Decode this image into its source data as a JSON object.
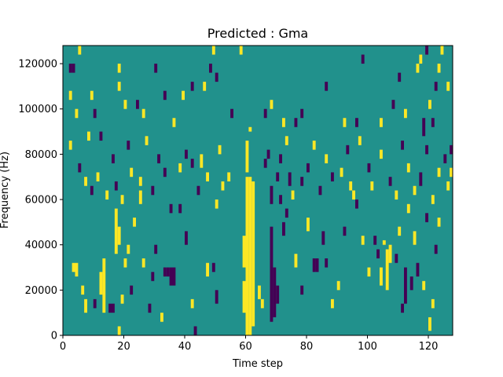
{
  "chart_data": {
    "type": "heatmap",
    "title": "Predicted : Gma",
    "xlabel": "Time step",
    "ylabel": "Frequency (Hz)",
    "xlim": [
      0,
      128
    ],
    "ylim": [
      0,
      128000
    ],
    "x_ticks": [
      0,
      20,
      40,
      60,
      80,
      100,
      120
    ],
    "y_ticks": [
      0,
      20000,
      40000,
      60000,
      80000,
      100000,
      120000
    ],
    "grid": false,
    "colormap": "viridis",
    "levels": {
      "low": "#440154",
      "background": "#21918c",
      "high": "#fde725"
    },
    "background_level": "background",
    "cells": [
      {
        "t": 60,
        "f0": 0,
        "f1": 70000,
        "level": "high"
      },
      {
        "t": 61,
        "f0": 0,
        "f1": 70000,
        "level": "high"
      },
      {
        "t": 62,
        "f0": 4000,
        "f1": 68000,
        "level": "high"
      },
      {
        "t": 59,
        "f0": 10000,
        "f1": 24000,
        "level": "high"
      },
      {
        "t": 59,
        "f0": 30000,
        "f1": 44000,
        "level": "high"
      },
      {
        "t": 60,
        "f0": 72000,
        "f1": 86000,
        "level": "high"
      },
      {
        "t": 61,
        "f0": 90000,
        "f1": 92000,
        "level": "high"
      },
      {
        "t": 68,
        "f0": 6000,
        "f1": 48000,
        "level": "low"
      },
      {
        "t": 69,
        "f0": 8000,
        "f1": 30000,
        "level": "low"
      },
      {
        "t": 70,
        "f0": 14000,
        "f1": 22000,
        "level": "low"
      },
      {
        "t": 68,
        "f0": 58000,
        "f1": 66000,
        "level": "low"
      },
      {
        "t": 71,
        "f0": 58000,
        "f1": 62000,
        "level": "low"
      },
      {
        "t": 82,
        "f0": 28000,
        "f1": 34000,
        "level": "low"
      },
      {
        "t": 83,
        "f0": 28000,
        "f1": 34000,
        "level": "low"
      },
      {
        "t": 106,
        "f0": 20000,
        "f1": 38000,
        "level": "high"
      },
      {
        "t": 104,
        "f0": 22000,
        "f1": 30000,
        "level": "high"
      },
      {
        "t": 105,
        "f0": 40000,
        "f1": 42000,
        "level": "high"
      },
      {
        "t": 107,
        "f0": 32000,
        "f1": 40000,
        "level": "high"
      },
      {
        "t": 112,
        "f0": 14000,
        "f1": 30000,
        "level": "low"
      },
      {
        "t": 114,
        "f0": 20000,
        "f1": 26000,
        "level": "low"
      },
      {
        "t": 13,
        "f0": 10000,
        "f1": 34000,
        "level": "high"
      },
      {
        "t": 12,
        "f0": 18000,
        "f1": 28000,
        "level": "high"
      },
      {
        "t": 17,
        "f0": 36000,
        "f1": 56000,
        "level": "high"
      },
      {
        "t": 18,
        "f0": 40000,
        "f1": 48000,
        "level": "high"
      },
      {
        "t": 4,
        "f0": 26000,
        "f1": 32000,
        "level": "high"
      },
      {
        "t": 3,
        "f0": 28000,
        "f1": 32000,
        "level": "high"
      },
      {
        "t": 6,
        "f0": 18000,
        "f1": 22000,
        "level": "high"
      },
      {
        "t": 7,
        "f0": 10000,
        "f1": 16000,
        "level": "high"
      },
      {
        "t": 10,
        "f0": 12000,
        "f1": 16000,
        "level": "low"
      },
      {
        "t": 15,
        "f0": 10000,
        "f1": 14000,
        "level": "low"
      },
      {
        "t": 16,
        "f0": 10000,
        "f1": 14000,
        "level": "low"
      },
      {
        "t": 18,
        "f0": 0,
        "f1": 4000,
        "level": "high"
      },
      {
        "t": 19,
        "f0": 14000,
        "f1": 18000,
        "level": "high"
      },
      {
        "t": 20,
        "f0": 30000,
        "f1": 34000,
        "level": "high"
      },
      {
        "t": 21,
        "f0": 36000,
        "f1": 40000,
        "level": "high"
      },
      {
        "t": 22,
        "f0": 18000,
        "f1": 22000,
        "level": "low"
      },
      {
        "t": 23,
        "f0": 48000,
        "f1": 52000,
        "level": "high"
      },
      {
        "t": 25,
        "f0": 58000,
        "f1": 64000,
        "level": "high"
      },
      {
        "t": 26,
        "f0": 30000,
        "f1": 34000,
        "level": "high"
      },
      {
        "t": 28,
        "f0": 10000,
        "f1": 14000,
        "level": "low"
      },
      {
        "t": 29,
        "f0": 24000,
        "f1": 28000,
        "level": "low"
      },
      {
        "t": 30,
        "f0": 36000,
        "f1": 40000,
        "level": "low"
      },
      {
        "t": 32,
        "f0": 6000,
        "f1": 10000,
        "level": "high"
      },
      {
        "t": 33,
        "f0": 26000,
        "f1": 30000,
        "level": "low"
      },
      {
        "t": 34,
        "f0": 26000,
        "f1": 30000,
        "level": "low"
      },
      {
        "t": 35,
        "f0": 22000,
        "f1": 30000,
        "level": "low"
      },
      {
        "t": 36,
        "f0": 22000,
        "f1": 30000,
        "level": "low"
      },
      {
        "t": 38,
        "f0": 54000,
        "f1": 58000,
        "level": "low"
      },
      {
        "t": 40,
        "f0": 40000,
        "f1": 46000,
        "level": "low"
      },
      {
        "t": 42,
        "f0": 12000,
        "f1": 16000,
        "level": "high"
      },
      {
        "t": 43,
        "f0": 0,
        "f1": 4000,
        "level": "low"
      },
      {
        "t": 45,
        "f0": 74000,
        "f1": 80000,
        "level": "high"
      },
      {
        "t": 47,
        "f0": 26000,
        "f1": 32000,
        "level": "high"
      },
      {
        "t": 49,
        "f0": 28000,
        "f1": 32000,
        "level": "low"
      },
      {
        "t": 50,
        "f0": 14000,
        "f1": 20000,
        "level": "low"
      },
      {
        "t": 51,
        "f0": 80000,
        "f1": 84000,
        "level": "high"
      },
      {
        "t": 52,
        "f0": 64000,
        "f1": 68000,
        "level": "high"
      },
      {
        "t": 64,
        "f0": 16000,
        "f1": 22000,
        "level": "high"
      },
      {
        "t": 65,
        "f0": 12000,
        "f1": 16000,
        "level": "high"
      },
      {
        "t": 72,
        "f0": 44000,
        "f1": 50000,
        "level": "low"
      },
      {
        "t": 73,
        "f0": 52000,
        "f1": 56000,
        "level": "low"
      },
      {
        "t": 74,
        "f0": 66000,
        "f1": 72000,
        "level": "low"
      },
      {
        "t": 76,
        "f0": 30000,
        "f1": 36000,
        "level": "high"
      },
      {
        "t": 78,
        "f0": 18000,
        "f1": 22000,
        "level": "low"
      },
      {
        "t": 80,
        "f0": 46000,
        "f1": 52000,
        "level": "high"
      },
      {
        "t": 85,
        "f0": 40000,
        "f1": 46000,
        "level": "low"
      },
      {
        "t": 86,
        "f0": 30000,
        "f1": 34000,
        "level": "low"
      },
      {
        "t": 88,
        "f0": 12000,
        "f1": 16000,
        "level": "high"
      },
      {
        "t": 90,
        "f0": 20000,
        "f1": 24000,
        "level": "high"
      },
      {
        "t": 92,
        "f0": 44000,
        "f1": 48000,
        "level": "low"
      },
      {
        "t": 94,
        "f0": 64000,
        "f1": 68000,
        "level": "high"
      },
      {
        "t": 96,
        "f0": 56000,
        "f1": 60000,
        "level": "low"
      },
      {
        "t": 98,
        "f0": 40000,
        "f1": 44000,
        "level": "high"
      },
      {
        "t": 100,
        "f0": 26000,
        "f1": 30000,
        "level": "high"
      },
      {
        "t": 102,
        "f0": 40000,
        "f1": 44000,
        "level": "low"
      },
      {
        "t": 103,
        "f0": 34000,
        "f1": 38000,
        "level": "low"
      },
      {
        "t": 109,
        "f0": 32000,
        "f1": 36000,
        "level": "low"
      },
      {
        "t": 110,
        "f0": 44000,
        "f1": 48000,
        "level": "high"
      },
      {
        "t": 111,
        "f0": 10000,
        "f1": 14000,
        "level": "low"
      },
      {
        "t": 113,
        "f0": 54000,
        "f1": 58000,
        "level": "high"
      },
      {
        "t": 115,
        "f0": 40000,
        "f1": 46000,
        "level": "high"
      },
      {
        "t": 116,
        "f0": 26000,
        "f1": 32000,
        "level": "low"
      },
      {
        "t": 118,
        "f0": 20000,
        "f1": 24000,
        "level": "high"
      },
      {
        "t": 119,
        "f0": 50000,
        "f1": 54000,
        "level": "low"
      },
      {
        "t": 120,
        "f0": 2000,
        "f1": 8000,
        "level": "high"
      },
      {
        "t": 121,
        "f0": 12000,
        "f1": 16000,
        "level": "high"
      },
      {
        "t": 122,
        "f0": 36000,
        "f1": 40000,
        "level": "low"
      },
      {
        "t": 123,
        "f0": 48000,
        "f1": 52000,
        "level": "high"
      },
      {
        "t": 2,
        "f0": 116000,
        "f1": 120000,
        "level": "low"
      },
      {
        "t": 3,
        "f0": 116000,
        "f1": 120000,
        "level": "low"
      },
      {
        "t": 5,
        "f0": 124000,
        "f1": 128000,
        "level": "high"
      },
      {
        "t": 2,
        "f0": 104000,
        "f1": 108000,
        "level": "high"
      },
      {
        "t": 4,
        "f0": 96000,
        "f1": 100000,
        "level": "high"
      },
      {
        "t": 9,
        "f0": 104000,
        "f1": 108000,
        "level": "high"
      },
      {
        "t": 10,
        "f0": 96000,
        "f1": 100000,
        "level": "low"
      },
      {
        "t": 18,
        "f0": 116000,
        "f1": 120000,
        "level": "high"
      },
      {
        "t": 18,
        "f0": 108000,
        "f1": 112000,
        "level": "high"
      },
      {
        "t": 20,
        "f0": 100000,
        "f1": 104000,
        "level": "high"
      },
      {
        "t": 24,
        "f0": 100000,
        "f1": 104000,
        "level": "low"
      },
      {
        "t": 26,
        "f0": 96000,
        "f1": 100000,
        "level": "high"
      },
      {
        "t": 30,
        "f0": 116000,
        "f1": 120000,
        "level": "low"
      },
      {
        "t": 33,
        "f0": 104000,
        "f1": 108000,
        "level": "low"
      },
      {
        "t": 36,
        "f0": 92000,
        "f1": 96000,
        "level": "high"
      },
      {
        "t": 39,
        "f0": 104000,
        "f1": 108000,
        "level": "high"
      },
      {
        "t": 42,
        "f0": 108000,
        "f1": 112000,
        "level": "low"
      },
      {
        "t": 46,
        "f0": 108000,
        "f1": 112000,
        "level": "high"
      },
      {
        "t": 48,
        "f0": 116000,
        "f1": 120000,
        "level": "low"
      },
      {
        "t": 49,
        "f0": 124000,
        "f1": 128000,
        "level": "high"
      },
      {
        "t": 50,
        "f0": 112000,
        "f1": 116000,
        "level": "low"
      },
      {
        "t": 55,
        "f0": 96000,
        "f1": 100000,
        "level": "low"
      },
      {
        "t": 58,
        "f0": 124000,
        "f1": 128000,
        "level": "high"
      },
      {
        "t": 66,
        "f0": 96000,
        "f1": 100000,
        "level": "low"
      },
      {
        "t": 68,
        "f0": 100000,
        "f1": 104000,
        "level": "high"
      },
      {
        "t": 72,
        "f0": 92000,
        "f1": 96000,
        "level": "high"
      },
      {
        "t": 76,
        "f0": 92000,
        "f1": 96000,
        "level": "low"
      },
      {
        "t": 78,
        "f0": 96000,
        "f1": 100000,
        "level": "low"
      },
      {
        "t": 86,
        "f0": 108000,
        "f1": 112000,
        "level": "low"
      },
      {
        "t": 92,
        "f0": 92000,
        "f1": 96000,
        "level": "high"
      },
      {
        "t": 96,
        "f0": 92000,
        "f1": 96000,
        "level": "low"
      },
      {
        "t": 98,
        "f0": 120000,
        "f1": 124000,
        "level": "low"
      },
      {
        "t": 104,
        "f0": 92000,
        "f1": 96000,
        "level": "high"
      },
      {
        "t": 108,
        "f0": 100000,
        "f1": 104000,
        "level": "low"
      },
      {
        "t": 110,
        "f0": 112000,
        "f1": 116000,
        "level": "low"
      },
      {
        "t": 112,
        "f0": 96000,
        "f1": 100000,
        "level": "high"
      },
      {
        "t": 116,
        "f0": 116000,
        "f1": 120000,
        "level": "high"
      },
      {
        "t": 117,
        "f0": 120000,
        "f1": 124000,
        "level": "high"
      },
      {
        "t": 118,
        "f0": 88000,
        "f1": 96000,
        "level": "low"
      },
      {
        "t": 119,
        "f0": 124000,
        "f1": 128000,
        "level": "low"
      },
      {
        "t": 120,
        "f0": 100000,
        "f1": 104000,
        "level": "high"
      },
      {
        "t": 121,
        "f0": 92000,
        "f1": 96000,
        "level": "low"
      },
      {
        "t": 122,
        "f0": 108000,
        "f1": 112000,
        "level": "low"
      },
      {
        "t": 123,
        "f0": 116000,
        "f1": 120000,
        "level": "high"
      },
      {
        "t": 124,
        "f0": 124000,
        "f1": 128000,
        "level": "high"
      },
      {
        "t": 126,
        "f0": 108000,
        "f1": 112000,
        "level": "high"
      },
      {
        "t": 127,
        "f0": 80000,
        "f1": 84000,
        "level": "low"
      },
      {
        "t": 2,
        "f0": 82000,
        "f1": 86000,
        "level": "high"
      },
      {
        "t": 5,
        "f0": 72000,
        "f1": 76000,
        "level": "low"
      },
      {
        "t": 7,
        "f0": 66000,
        "f1": 70000,
        "level": "high"
      },
      {
        "t": 8,
        "f0": 86000,
        "f1": 90000,
        "level": "high"
      },
      {
        "t": 9,
        "f0": 62000,
        "f1": 66000,
        "level": "low"
      },
      {
        "t": 11,
        "f0": 68000,
        "f1": 72000,
        "level": "high"
      },
      {
        "t": 12,
        "f0": 86000,
        "f1": 90000,
        "level": "low"
      },
      {
        "t": 14,
        "f0": 60000,
        "f1": 64000,
        "level": "high"
      },
      {
        "t": 16,
        "f0": 76000,
        "f1": 80000,
        "level": "low"
      },
      {
        "t": 17,
        "f0": 64000,
        "f1": 68000,
        "level": "low"
      },
      {
        "t": 19,
        "f0": 58000,
        "f1": 62000,
        "level": "high"
      },
      {
        "t": 21,
        "f0": 82000,
        "f1": 86000,
        "level": "low"
      },
      {
        "t": 22,
        "f0": 70000,
        "f1": 74000,
        "level": "high"
      },
      {
        "t": 25,
        "f0": 66000,
        "f1": 70000,
        "level": "high"
      },
      {
        "t": 27,
        "f0": 84000,
        "f1": 88000,
        "level": "high"
      },
      {
        "t": 29,
        "f0": 62000,
        "f1": 66000,
        "level": "low"
      },
      {
        "t": 31,
        "f0": 76000,
        "f1": 80000,
        "level": "low"
      },
      {
        "t": 33,
        "f0": 70000,
        "f1": 74000,
        "level": "low"
      },
      {
        "t": 35,
        "f0": 54000,
        "f1": 58000,
        "level": "low"
      },
      {
        "t": 38,
        "f0": 72000,
        "f1": 76000,
        "level": "high"
      },
      {
        "t": 40,
        "f0": 78000,
        "f1": 82000,
        "level": "low"
      },
      {
        "t": 42,
        "f0": 74000,
        "f1": 78000,
        "level": "low"
      },
      {
        "t": 44,
        "f0": 62000,
        "f1": 66000,
        "level": "low"
      },
      {
        "t": 47,
        "f0": 68000,
        "f1": 72000,
        "level": "high"
      },
      {
        "t": 50,
        "f0": 56000,
        "f1": 60000,
        "level": "high"
      },
      {
        "t": 54,
        "f0": 68000,
        "f1": 72000,
        "level": "high"
      },
      {
        "t": 66,
        "f0": 74000,
        "f1": 78000,
        "level": "low"
      },
      {
        "t": 67,
        "f0": 78000,
        "f1": 82000,
        "level": "low"
      },
      {
        "t": 70,
        "f0": 68000,
        "f1": 72000,
        "level": "low"
      },
      {
        "t": 71,
        "f0": 76000,
        "f1": 80000,
        "level": "low"
      },
      {
        "t": 73,
        "f0": 84000,
        "f1": 88000,
        "level": "high"
      },
      {
        "t": 75,
        "f0": 60000,
        "f1": 64000,
        "level": "high"
      },
      {
        "t": 78,
        "f0": 66000,
        "f1": 70000,
        "level": "low"
      },
      {
        "t": 80,
        "f0": 72000,
        "f1": 76000,
        "level": "low"
      },
      {
        "t": 82,
        "f0": 82000,
        "f1": 86000,
        "level": "high"
      },
      {
        "t": 84,
        "f0": 62000,
        "f1": 66000,
        "level": "low"
      },
      {
        "t": 86,
        "f0": 76000,
        "f1": 80000,
        "level": "high"
      },
      {
        "t": 88,
        "f0": 68000,
        "f1": 72000,
        "level": "low"
      },
      {
        "t": 91,
        "f0": 70000,
        "f1": 74000,
        "level": "high"
      },
      {
        "t": 93,
        "f0": 80000,
        "f1": 84000,
        "level": "low"
      },
      {
        "t": 95,
        "f0": 60000,
        "f1": 64000,
        "level": "high"
      },
      {
        "t": 97,
        "f0": 84000,
        "f1": 88000,
        "level": "high"
      },
      {
        "t": 100,
        "f0": 72000,
        "f1": 76000,
        "level": "low"
      },
      {
        "t": 101,
        "f0": 64000,
        "f1": 68000,
        "level": "high"
      },
      {
        "t": 104,
        "f0": 78000,
        "f1": 82000,
        "level": "high"
      },
      {
        "t": 107,
        "f0": 66000,
        "f1": 70000,
        "level": "low"
      },
      {
        "t": 109,
        "f0": 60000,
        "f1": 64000,
        "level": "high"
      },
      {
        "t": 111,
        "f0": 82000,
        "f1": 86000,
        "level": "low"
      },
      {
        "t": 113,
        "f0": 72000,
        "f1": 76000,
        "level": "high"
      },
      {
        "t": 115,
        "f0": 62000,
        "f1": 66000,
        "level": "high"
      },
      {
        "t": 117,
        "f0": 66000,
        "f1": 72000,
        "level": "low"
      },
      {
        "t": 119,
        "f0": 80000,
        "f1": 84000,
        "level": "low"
      },
      {
        "t": 121,
        "f0": 58000,
        "f1": 62000,
        "level": "high"
      },
      {
        "t": 123,
        "f0": 70000,
        "f1": 74000,
        "level": "high"
      },
      {
        "t": 125,
        "f0": 76000,
        "f1": 80000,
        "level": "low"
      },
      {
        "t": 126,
        "f0": 64000,
        "f1": 68000,
        "level": "high"
      },
      {
        "t": 127,
        "f0": 70000,
        "f1": 74000,
        "level": "high"
      }
    ]
  }
}
